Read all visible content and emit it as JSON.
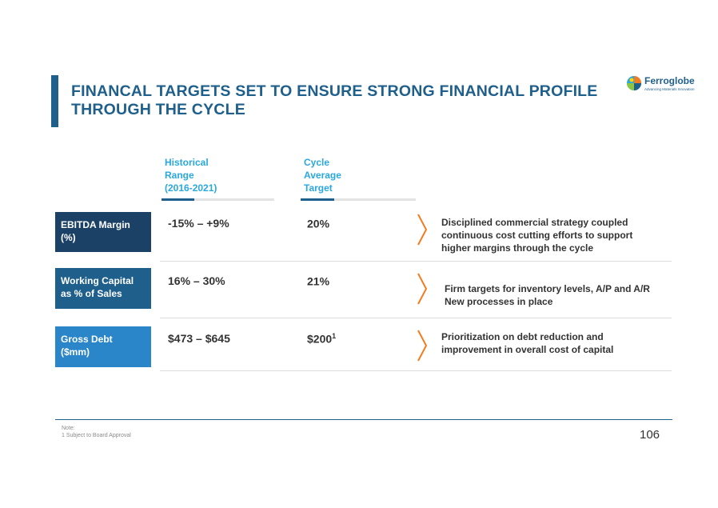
{
  "header": {
    "title_line1": "FINANCAL TARGETS SET TO ENSURE STRONG FINANCIAL PROFILE",
    "title_line2": "THROUGH THE CYCLE"
  },
  "logo": {
    "name": "Ferroglobe",
    "tagline": "Advancing Materials Innovation",
    "icon": "ferroglobe-globe-icon"
  },
  "columns": {
    "historical": [
      "Historical",
      "Range",
      "(2016-2021)"
    ],
    "cycle": [
      "Cycle",
      "Average",
      "Target"
    ]
  },
  "rows": [
    {
      "metric": [
        "EBITDA Margin",
        "(%)"
      ],
      "historical": "-15% – +9%",
      "target": "20%",
      "target_sup": "",
      "description": [
        "Disciplined commercial strategy coupled",
        "continuous cost cutting efforts to support",
        "higher margins through the cycle"
      ],
      "color": "#1b4166"
    },
    {
      "metric": [
        "Working Capital",
        "as % of Sales"
      ],
      "historical": "16% – 30%",
      "target": "21%",
      "target_sup": "",
      "description": [
        "Firm targets for inventory levels, A/P and A/R",
        "New processes in place"
      ],
      "color": "#1f5f8b"
    },
    {
      "metric": [
        "Gross Debt",
        "($mm)"
      ],
      "historical": "$473 – $645",
      "target": "$200",
      "target_sup": "1",
      "description": [
        "Prioritization on debt reduction and",
        "improvement in overall cost of capital"
      ],
      "color": "#2a86c8"
    }
  ],
  "footer": {
    "note_label": "Note:",
    "note_text": "1 Subject to Board Approval",
    "page_number": "106"
  },
  "colors": {
    "primary": "#1f5f8b",
    "accent": "#29a8e0",
    "chevron": "#f47c20"
  }
}
